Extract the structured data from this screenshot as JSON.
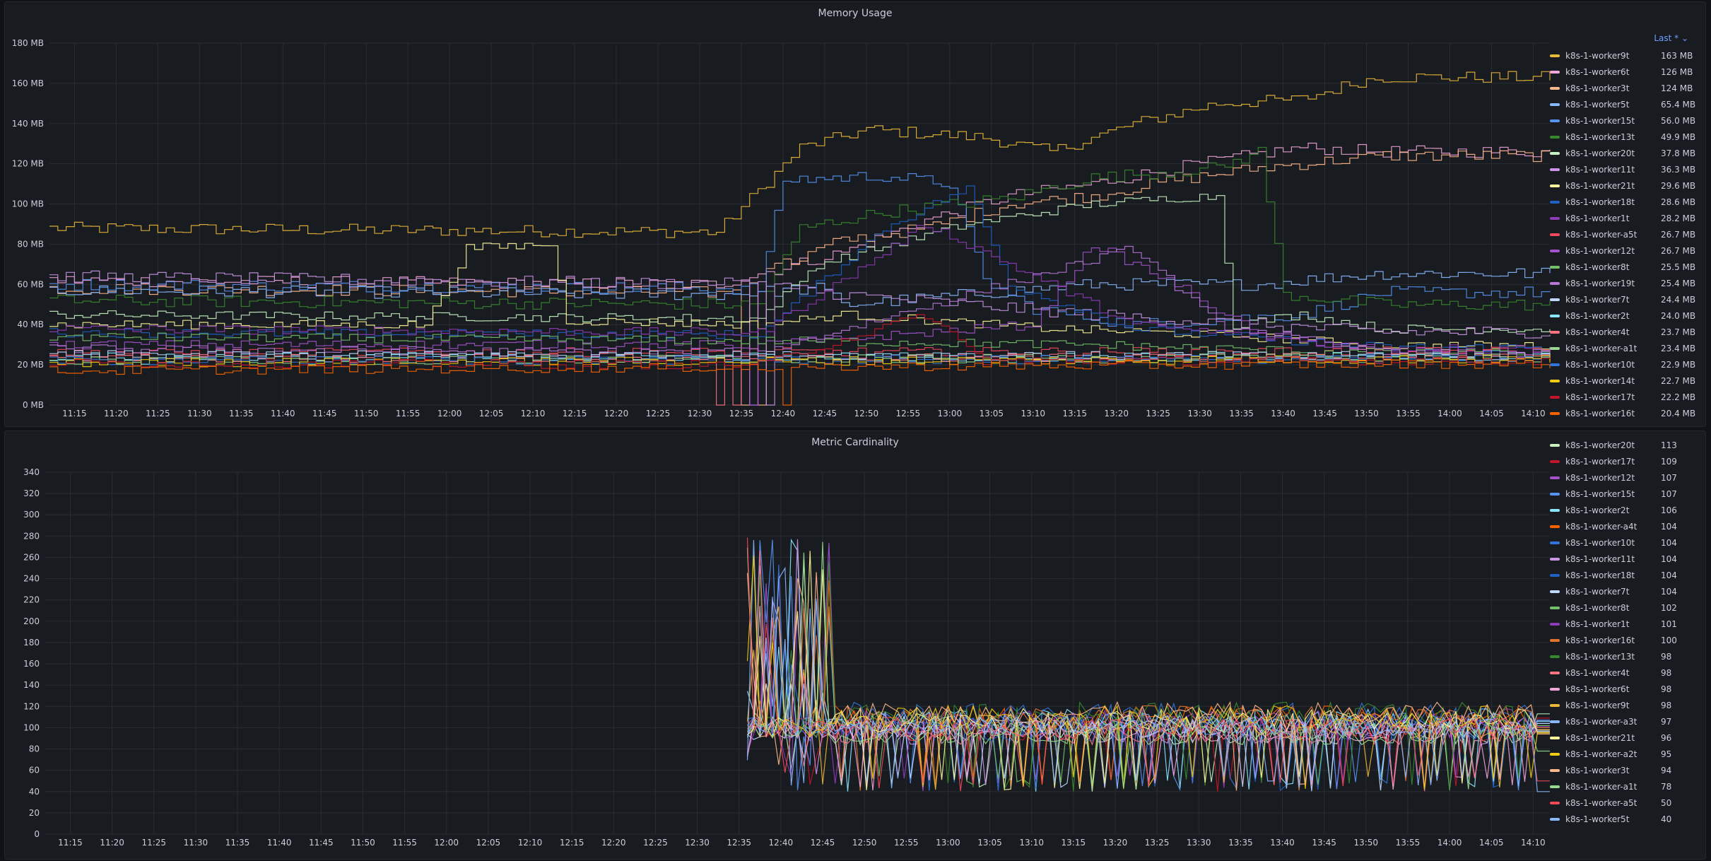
{
  "panels": [
    {
      "title": "Memory Usage",
      "legend_sort_label": "Last * ⌄",
      "chart_data": {
        "type": "line",
        "title": "Memory Usage",
        "y_unit": "MB",
        "ylim": [
          0,
          180
        ],
        "y_ticks": [
          "0 MB",
          "20 MB",
          "40 MB",
          "60 MB",
          "80 MB",
          "100 MB",
          "120 MB",
          "140 MB",
          "160 MB",
          "180 MB"
        ],
        "x_ticks": [
          "11:15",
          "11:20",
          "11:25",
          "11:30",
          "11:35",
          "11:40",
          "11:45",
          "11:50",
          "11:55",
          "12:00",
          "12:05",
          "12:10",
          "12:15",
          "12:20",
          "12:25",
          "12:30",
          "12:35",
          "12:40",
          "12:45",
          "12:50",
          "12:55",
          "13:00",
          "13:05",
          "13:10",
          "13:15",
          "13:20",
          "13:25",
          "13:30",
          "13:35",
          "13:40",
          "13:45",
          "13:50",
          "13:55",
          "14:00",
          "14:05",
          "14:10"
        ],
        "x_range": [
          "11:12",
          "14:12"
        ],
        "grid": true,
        "legend_placement": "right",
        "series": [
          {
            "name": "k8s-1-worker9t",
            "last": "163 MB",
            "color": "#eab839",
            "keys": [
              [
                0,
                88
              ],
              [
                80,
                86
              ],
              [
                90,
                128
              ],
              [
                98,
                137
              ],
              [
                112,
                133
              ],
              [
                120,
                126
              ],
              [
                130,
                140
              ],
              [
                140,
                150
              ],
              [
                150,
                152
              ],
              [
                157,
                161
              ],
              [
                160,
                163
              ]
            ]
          },
          {
            "name": "k8s-1-worker6t",
            "last": "126 MB",
            "color": "#f2a4d8",
            "keys": [
              [
                0,
                62
              ],
              [
                80,
                60
              ],
              [
                95,
                76
              ],
              [
                105,
                92
              ],
              [
                115,
                104
              ],
              [
                125,
                110
              ],
              [
                135,
                118
              ],
              [
                145,
                125
              ],
              [
                150,
                128
              ],
              [
                160,
                126
              ]
            ]
          },
          {
            "name": "k8s-1-worker3t",
            "last": "124 MB",
            "color": "#ffb78c",
            "keys": [
              [
                0,
                58
              ],
              [
                80,
                56
              ],
              [
                95,
                82
              ],
              [
                105,
                88
              ],
              [
                115,
                100
              ],
              [
                125,
                104
              ],
              [
                135,
                112
              ],
              [
                145,
                118
              ],
              [
                150,
                120
              ],
              [
                160,
                124
              ]
            ]
          },
          {
            "name": "k8s-1-worker5t",
            "last": "65.4 MB",
            "color": "#8ab8ff",
            "keys": [
              [
                0,
                57
              ],
              [
                80,
                55
              ],
              [
                92,
                58
              ],
              [
                96,
                50
              ],
              [
                110,
                55
              ],
              [
                125,
                60
              ],
              [
                145,
                60
              ],
              [
                155,
                64
              ],
              [
                160,
                65.4
              ]
            ]
          },
          {
            "name": "k8s-1-worker15t",
            "last": "56.0 MB",
            "color": "#5794f2",
            "keys": [
              [
                0,
                60
              ],
              [
                85,
                58
              ],
              [
                88,
                112
              ],
              [
                100,
                114
              ],
              [
                108,
                110
              ],
              [
                112,
                62
              ],
              [
                118,
                48
              ],
              [
                130,
                40
              ],
              [
                150,
                45
              ],
              [
                160,
                56
              ]
            ]
          },
          {
            "name": "k8s-1-worker13t",
            "last": "49.9 MB",
            "color": "#37872d",
            "keys": [
              [
                0,
                52
              ],
              [
                85,
                50
              ],
              [
                90,
                88
              ],
              [
                100,
                96
              ],
              [
                115,
                103
              ],
              [
                125,
                113
              ],
              [
                140,
                118
              ],
              [
                145,
                126
              ],
              [
                148,
                55
              ],
              [
                160,
                49.9
              ]
            ]
          },
          {
            "name": "k8s-1-worker20t",
            "last": "37.8 MB",
            "color": "#c8f2c2",
            "keys": [
              [
                0,
                45
              ],
              [
                85,
                43
              ],
              [
                92,
                70
              ],
              [
                110,
                90
              ],
              [
                125,
                100
              ],
              [
                135,
                103
              ],
              [
                140,
                104
              ],
              [
                142,
                40
              ],
              [
                150,
                45
              ],
              [
                160,
                37.8
              ]
            ]
          },
          {
            "name": "k8s-1-worker11t",
            "last": "36.3 MB",
            "color": "#ca95e5",
            "keys": [
              [
                0,
                64
              ],
              [
                85,
                60
              ],
              [
                95,
                55
              ],
              [
                110,
                50
              ],
              [
                125,
                45
              ],
              [
                145,
                40
              ],
              [
                160,
                36.3
              ]
            ]
          },
          {
            "name": "k8s-1-worker21t",
            "last": "29.6 MB",
            "color": "#fff899",
            "keys": [
              [
                0,
                40
              ],
              [
                45,
                40
              ],
              [
                50,
                78
              ],
              [
                60,
                80
              ],
              [
                62,
                42
              ],
              [
                85,
                40
              ],
              [
                95,
                45
              ],
              [
                120,
                38
              ],
              [
                140,
                35
              ],
              [
                160,
                29.6
              ]
            ]
          },
          {
            "name": "k8s-1-worker18t",
            "last": "28.6 MB",
            "color": "#1f60c4",
            "keys": [
              [
                0,
                36
              ],
              [
                85,
                35
              ],
              [
                100,
                88
              ],
              [
                110,
                108
              ],
              [
                115,
                60
              ],
              [
                130,
                38
              ],
              [
                160,
                28.6
              ]
            ]
          },
          {
            "name": "k8s-1-worker1t",
            "last": "28.2 MB",
            "color": "#8f3bb8",
            "keys": [
              [
                0,
                38
              ],
              [
                85,
                36
              ],
              [
                95,
                62
              ],
              [
                105,
                90
              ],
              [
                115,
                70
              ],
              [
                130,
                40
              ],
              [
                160,
                28.2
              ]
            ]
          },
          {
            "name": "k8s-1-worker-a5t",
            "last": "26.7 MB",
            "color": "#f2495c",
            "keys": [
              [
                0,
                26
              ],
              [
                160,
                26.7
              ]
            ]
          },
          {
            "name": "k8s-1-worker12t",
            "last": "26.7 MB",
            "color": "#a352cc",
            "keys": [
              [
                0,
                30
              ],
              [
                85,
                30
              ],
              [
                118,
                40
              ],
              [
                125,
                80
              ],
              [
                135,
                60
              ],
              [
                145,
                35
              ],
              [
                160,
                26.7
              ]
            ]
          },
          {
            "name": "k8s-1-worker8t",
            "last": "25.5 MB",
            "color": "#73bf69",
            "keys": [
              [
                0,
                34
              ],
              [
                85,
                32
              ],
              [
                125,
                30
              ],
              [
                160,
                25.5
              ]
            ]
          },
          {
            "name": "k8s-1-worker19t",
            "last": "25.4 MB",
            "color": "#b877d9",
            "keys": [
              [
                0,
                28
              ],
              [
                85,
                26
              ],
              [
                130,
                78
              ],
              [
                140,
                40
              ],
              [
                160,
                25.4
              ]
            ]
          },
          {
            "name": "k8s-1-worker7t",
            "last": "24.4 MB",
            "color": "#c0d8ff",
            "keys": [
              [
                0,
                25
              ],
              [
                160,
                24.4
              ]
            ]
          },
          {
            "name": "k8s-1-worker2t",
            "last": "24.0 MB",
            "color": "#8ae6ff",
            "keys": [
              [
                0,
                24
              ],
              [
                160,
                24
              ]
            ]
          },
          {
            "name": "k8s-1-worker4t",
            "last": "23.7 MB",
            "color": "#ff7383",
            "keys": [
              [
                0,
                23
              ],
              [
                160,
                23.7
              ]
            ]
          },
          {
            "name": "k8s-1-worker-a1t",
            "last": "23.4 MB",
            "color": "#96d98d",
            "keys": [
              [
                0,
                22
              ],
              [
                160,
                23.4
              ]
            ]
          },
          {
            "name": "k8s-1-worker10t",
            "last": "22.9 MB",
            "color": "#3274d9",
            "keys": [
              [
                0,
                22
              ],
              [
                160,
                22.9
              ]
            ]
          },
          {
            "name": "k8s-1-worker14t",
            "last": "22.7 MB",
            "color": "#f2cc0c",
            "keys": [
              [
                0,
                21
              ],
              [
                160,
                22.7
              ]
            ]
          },
          {
            "name": "k8s-1-worker17t",
            "last": "22.2 MB",
            "color": "#c4162a",
            "keys": [
              [
                0,
                21
              ],
              [
                85,
                20
              ],
              [
                105,
                45
              ],
              [
                112,
                22
              ],
              [
                160,
                22.2
              ]
            ]
          },
          {
            "name": "k8s-1-worker16t",
            "last": "20.4 MB",
            "color": "#fa6400",
            "keys": [
              [
                0,
                17
              ],
              [
                160,
                20.4
              ]
            ]
          }
        ]
      }
    },
    {
      "title": "Metric Cardinality",
      "chart_data": {
        "type": "line",
        "title": "Metric Cardinality",
        "ylim": [
          0,
          340
        ],
        "y_ticks": [
          "0",
          "20",
          "40",
          "60",
          "80",
          "100",
          "120",
          "140",
          "160",
          "180",
          "200",
          "220",
          "240",
          "260",
          "280",
          "300",
          "320",
          "340"
        ],
        "x_ticks": [
          "11:15",
          "11:20",
          "11:25",
          "11:30",
          "11:35",
          "11:40",
          "11:45",
          "11:50",
          "11:55",
          "12:00",
          "12:05",
          "12:10",
          "12:15",
          "12:20",
          "12:25",
          "12:30",
          "12:35",
          "12:40",
          "12:45",
          "12:50",
          "12:55",
          "13:00",
          "13:05",
          "13:10",
          "13:15",
          "13:20",
          "13:25",
          "13:30",
          "13:35",
          "13:40",
          "13:45",
          "13:50",
          "13:55",
          "14:00",
          "14:05",
          "14:10"
        ],
        "x_range": [
          "11:12",
          "14:12"
        ],
        "data_start": "12:36",
        "grid": true,
        "legend_placement": "right",
        "series": [
          {
            "name": "k8s-1-worker20t",
            "last": "113",
            "color": "#c8f2c2"
          },
          {
            "name": "k8s-1-worker17t",
            "last": "109",
            "color": "#c4162a"
          },
          {
            "name": "k8s-1-worker12t",
            "last": "107",
            "color": "#a352cc"
          },
          {
            "name": "k8s-1-worker15t",
            "last": "107",
            "color": "#5794f2"
          },
          {
            "name": "k8s-1-worker2t",
            "last": "106",
            "color": "#8ae6ff"
          },
          {
            "name": "k8s-1-worker-a4t",
            "last": "104",
            "color": "#fa6400"
          },
          {
            "name": "k8s-1-worker10t",
            "last": "104",
            "color": "#3274d9"
          },
          {
            "name": "k8s-1-worker11t",
            "last": "104",
            "color": "#ca95e5"
          },
          {
            "name": "k8s-1-worker18t",
            "last": "104",
            "color": "#1f60c4"
          },
          {
            "name": "k8s-1-worker7t",
            "last": "104",
            "color": "#c0d8ff"
          },
          {
            "name": "k8s-1-worker8t",
            "last": "102",
            "color": "#73bf69"
          },
          {
            "name": "k8s-1-worker1t",
            "last": "101",
            "color": "#8f3bb8"
          },
          {
            "name": "k8s-1-worker16t",
            "last": "100",
            "color": "#e0752d"
          },
          {
            "name": "k8s-1-worker13t",
            "last": "98",
            "color": "#37872d"
          },
          {
            "name": "k8s-1-worker4t",
            "last": "98",
            "color": "#ff7383"
          },
          {
            "name": "k8s-1-worker6t",
            "last": "98",
            "color": "#f2a4d8"
          },
          {
            "name": "k8s-1-worker9t",
            "last": "98",
            "color": "#eab839"
          },
          {
            "name": "k8s-1-worker-a3t",
            "last": "97",
            "color": "#8ab8ff"
          },
          {
            "name": "k8s-1-worker21t",
            "last": "96",
            "color": "#fff899"
          },
          {
            "name": "k8s-1-worker-a2t",
            "last": "95",
            "color": "#f2cc0c"
          },
          {
            "name": "k8s-1-worker3t",
            "last": "94",
            "color": "#ffb78c"
          },
          {
            "name": "k8s-1-worker-a1t",
            "last": "78",
            "color": "#96d98d"
          },
          {
            "name": "k8s-1-worker-a5t",
            "last": "50",
            "color": "#f2495c"
          },
          {
            "name": "k8s-1-worker5t",
            "last": "40",
            "color": "#8ab8ff"
          }
        ]
      }
    }
  ]
}
